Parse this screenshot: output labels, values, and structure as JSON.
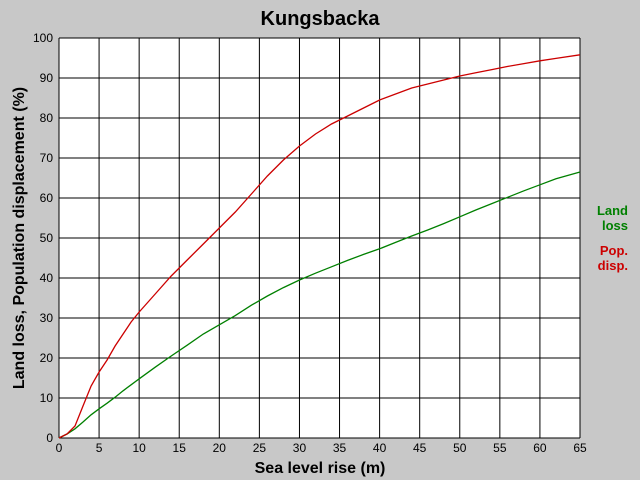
{
  "chart_data": {
    "type": "line",
    "title": "Kungsbacka",
    "xlabel": "Sea level rise (m)",
    "ylabel": "Land loss, Population displacement (%)",
    "xlim": [
      0,
      65
    ],
    "ylim": [
      0,
      100
    ],
    "x_ticks": [
      "0",
      "5",
      "10",
      "15",
      "20",
      "25",
      "30",
      "35",
      "40",
      "45",
      "50",
      "55",
      "60",
      "65"
    ],
    "y_ticks": [
      "0",
      "10",
      "20",
      "30",
      "40",
      "50",
      "60",
      "70",
      "80",
      "90",
      "100"
    ],
    "grid": true,
    "legend_placement": "right",
    "background_color": "#c8c8c8",
    "plot_background_color": "#ffffff",
    "x": [
      0,
      1,
      2,
      3,
      4,
      5,
      6,
      7,
      8,
      9,
      10,
      12,
      14,
      16,
      18,
      20,
      22,
      24,
      26,
      28,
      30,
      32,
      34,
      36,
      38,
      40,
      42,
      44,
      46,
      48,
      50,
      52,
      54,
      56,
      58,
      60,
      62,
      65
    ],
    "series": [
      {
        "name": "Land loss",
        "legend_label": [
          "Land",
          "loss"
        ],
        "color": "#008000",
        "values": [
          0,
          1,
          2.3,
          4,
          5.8,
          7.3,
          8.7,
          10.2,
          11.8,
          13.3,
          14.8,
          17.7,
          20.5,
          23.2,
          26,
          28.3,
          30.6,
          33.2,
          35.5,
          37.6,
          39.5,
          41.2,
          42.8,
          44.4,
          45.9,
          47.3,
          48.9,
          50.5,
          52,
          53.6,
          55.3,
          57,
          58.6,
          60.2,
          61.8,
          63.3,
          64.8,
          66.5
        ]
      },
      {
        "name": "Pop. disp.",
        "legend_label": [
          "Pop.",
          "disp."
        ],
        "color": "#cc0000",
        "values": [
          0,
          1,
          3,
          8,
          13,
          16.5,
          19.5,
          23,
          26,
          29,
          31.5,
          36,
          40.5,
          44.5,
          48.5,
          52.5,
          56.5,
          61,
          65.5,
          69.5,
          73,
          76,
          78.5,
          80.5,
          82.5,
          84.5,
          86,
          87.5,
          88.5,
          89.5,
          90.5,
          91.3,
          92.1,
          92.9,
          93.6,
          94.3,
          94.9,
          95.8
        ]
      }
    ]
  }
}
